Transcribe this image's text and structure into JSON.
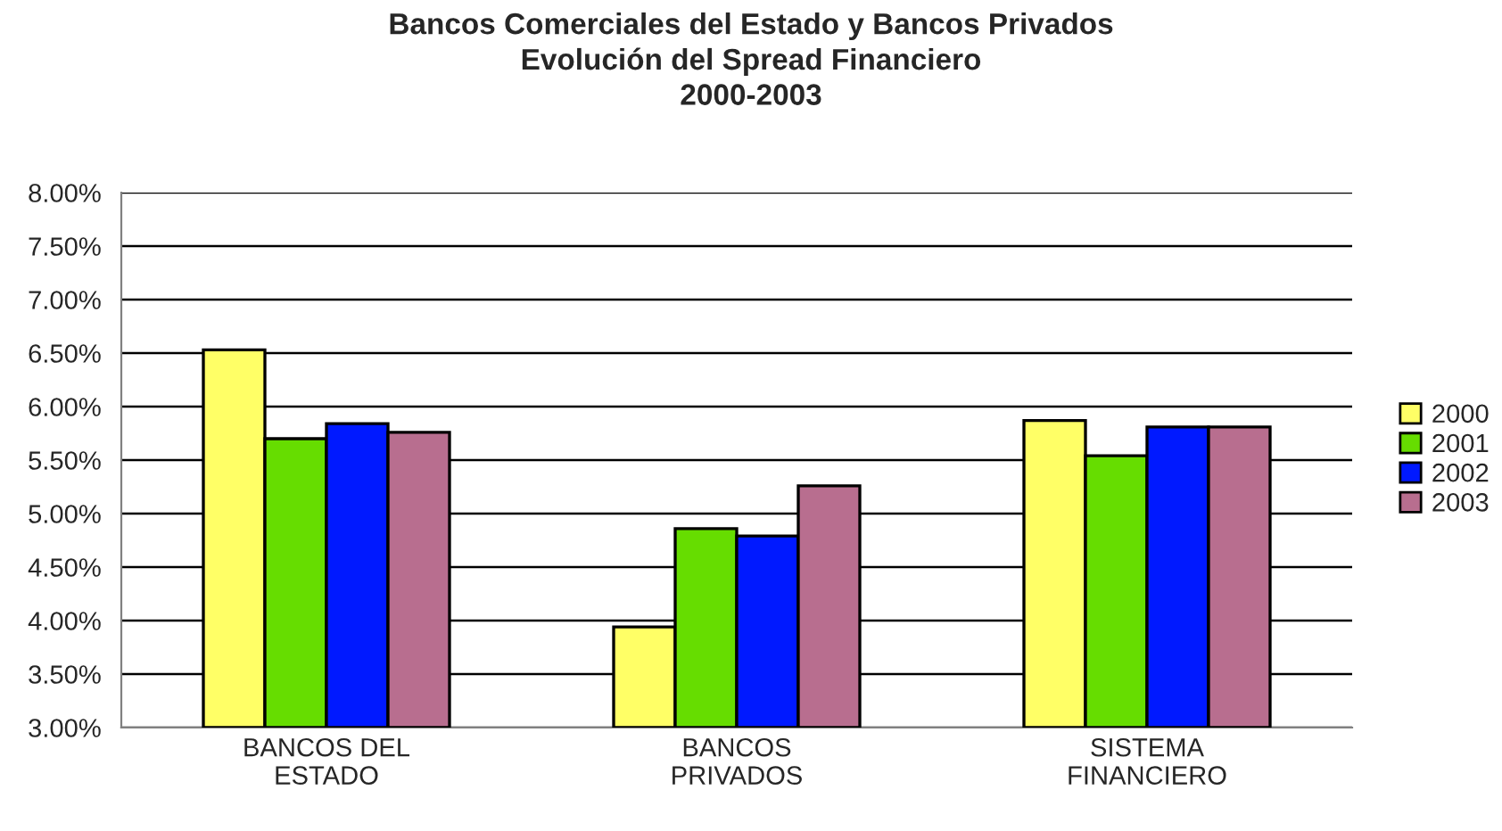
{
  "chart_data": {
    "type": "bar",
    "title": "Bancos Comerciales del Estado y Bancos Privados\nEvolución del Spread Financiero\n2000-2003",
    "categories": [
      "BANCOS DEL\nESTADO",
      "BANCOS\nPRIVADOS",
      "SISTEMA\nFINANCIERO"
    ],
    "series": [
      {
        "name": "2000",
        "color": "#ffff66",
        "values": [
          6.53,
          3.94,
          5.87
        ]
      },
      {
        "name": "2001",
        "color": "#66dd00",
        "values": [
          5.7,
          4.86,
          5.54
        ]
      },
      {
        "name": "2002",
        "color": "#0019ff",
        "values": [
          5.84,
          4.79,
          5.81
        ]
      },
      {
        "name": "2003",
        "color": "#b86e8f",
        "values": [
          5.76,
          5.26,
          5.81
        ]
      }
    ],
    "ylim": [
      3,
      8
    ],
    "yticks": [
      {
        "value": 3,
        "label": "3.00%"
      },
      {
        "value": 3.5,
        "label": "3.50%"
      },
      {
        "value": 4,
        "label": "4.00%"
      },
      {
        "value": 4.5,
        "label": "4.50%"
      },
      {
        "value": 5,
        "label": "5.00%"
      },
      {
        "value": 5.5,
        "label": "5.50%"
      },
      {
        "value": 6,
        "label": "6.00%"
      },
      {
        "value": 6.5,
        "label": "6.50%"
      },
      {
        "value": 7,
        "label": "7.00%"
      },
      {
        "value": 7.5,
        "label": "7.50%"
      },
      {
        "value": 8,
        "label": "8.00%"
      }
    ],
    "grid": "y",
    "legend": "right"
  }
}
